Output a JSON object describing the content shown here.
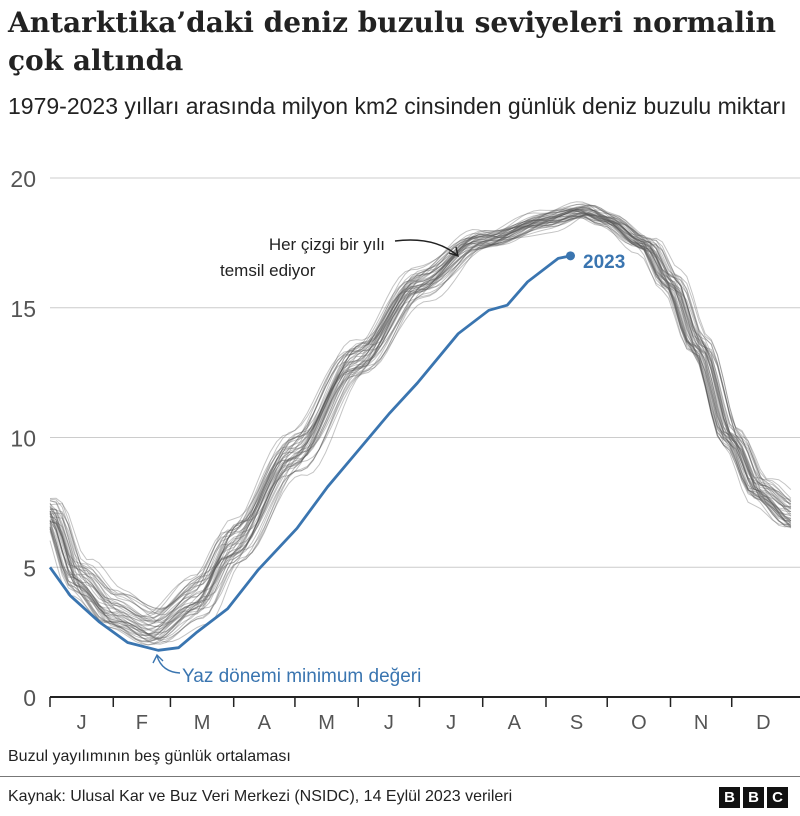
{
  "title": "Antarktika’daki deniz buzulu seviyeleri normalin çok altında",
  "subtitle": "1979-2023 yılları arasında milyon km2 cinsinden günlük deniz buzulu miktarı",
  "note": "Buzul yayılımının beş günlük ortalaması",
  "source": "Kaynak: Ulusal Kar ve Buz Veri Merkezi (NSIDC), 14 Eylül 2023 verileri",
  "logo": [
    "B",
    "B",
    "C"
  ],
  "chart_data": {
    "type": "line",
    "ylim": [
      0,
      20
    ],
    "yticks": [
      "0",
      "5",
      "10",
      "15",
      "20"
    ],
    "xticks": [
      "J",
      "F",
      "M",
      "A",
      "M",
      "J",
      "J",
      "A",
      "S",
      "O",
      "N",
      "D"
    ],
    "grid": true,
    "colors": {
      "highlight": "#3a75b0",
      "other_years": "#555555",
      "text": "#222222"
    },
    "annotations": {
      "years_note": [
        "Her çizgi bir yılı",
        "temsil ediyor"
      ],
      "minimum_note": "Yaz dönemi minimum değeri",
      "highlight_label": "2023"
    },
    "series": [
      {
        "name": "2023",
        "x": [
          "01-01",
          "01-11",
          "01-25",
          "02-08",
          "02-23",
          "03-05",
          "03-14",
          "03-29",
          "04-13",
          "05-02",
          "05-17",
          "06-01",
          "06-16",
          "06-30",
          "07-20",
          "08-04",
          "08-13",
          "08-23",
          "09-07",
          "09-13"
        ],
        "y": [
          5.0,
          3.9,
          2.9,
          2.1,
          1.8,
          1.9,
          2.5,
          3.4,
          4.9,
          6.5,
          8.1,
          9.5,
          10.9,
          12.1,
          14.0,
          14.9,
          15.1,
          16.0,
          16.9,
          17.0
        ]
      }
    ],
    "other_years": {
      "years": "1979-2022",
      "typical": {
        "x": [
          "01-01",
          "01-15",
          "02-01",
          "02-20",
          "03-15",
          "04-01",
          "05-01",
          "06-01",
          "07-01",
          "08-01",
          "09-01",
          "09-20",
          "10-01",
          "10-20",
          "11-01",
          "11-15",
          "12-01",
          "12-15",
          "12-31"
        ],
        "y": [
          7.2,
          4.6,
          3.3,
          2.7,
          3.9,
          5.9,
          9.5,
          13.0,
          16.0,
          17.6,
          18.4,
          18.7,
          18.4,
          17.5,
          16.0,
          13.5,
          10.0,
          8.0,
          7.0
        ]
      }
    }
  }
}
